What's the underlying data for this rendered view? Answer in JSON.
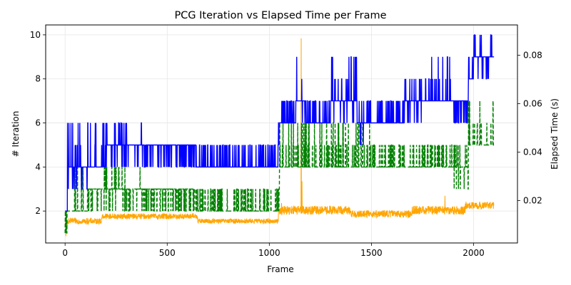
{
  "chart_data": {
    "type": "line",
    "title": "PCG Iteration vs Elapsed Time per Frame",
    "xlabel": "Frame",
    "ylabel": "# Iteration",
    "y2label": "Elapsed Time (s)",
    "xlim": [
      -95,
      2215
    ],
    "ylim": [
      0.55,
      10.45
    ],
    "y2lim": [
      0.0025,
      0.0925
    ],
    "xticks": [
      0,
      500,
      1000,
      1500,
      2000
    ],
    "yticks": [
      2,
      4,
      6,
      8,
      10
    ],
    "y2ticks": [
      0.02,
      0.04,
      0.06,
      0.08
    ],
    "y2tick_labels": [
      "0.02",
      "0.04",
      "0.06",
      "0.08"
    ],
    "grid": true,
    "frames": 2100,
    "series": [
      {
        "axis": "left",
        "style": "solid",
        "color": "#0000ff",
        "segments": [
          {
            "start": 0,
            "end": 12,
            "base": 2,
            "alts": [
              3,
              4
            ]
          },
          {
            "start": 12,
            "end": 80,
            "base": 4,
            "alts": [
              5,
              6,
              3
            ]
          },
          {
            "start": 80,
            "end": 110,
            "base": 4,
            "alts": [
              3
            ]
          },
          {
            "start": 110,
            "end": 200,
            "base": 4,
            "alts": [
              5,
              6
            ]
          },
          {
            "start": 200,
            "end": 380,
            "base": 5,
            "alts": [
              6,
              4
            ]
          },
          {
            "start": 380,
            "end": 640,
            "base": 5,
            "alts": [
              4
            ]
          },
          {
            "start": 640,
            "end": 1045,
            "base": 4,
            "alts": [
              5
            ]
          },
          {
            "start": 1045,
            "end": 1060,
            "base": 6,
            "alts": [
              7,
              5
            ]
          },
          {
            "start": 1060,
            "end": 1130,
            "base": 6,
            "alts": [
              7
            ]
          },
          {
            "start": 1130,
            "end": 1180,
            "base": 7,
            "alts": [
              9,
              8,
              6
            ]
          },
          {
            "start": 1180,
            "end": 1300,
            "base": 6,
            "alts": [
              7
            ]
          },
          {
            "start": 1300,
            "end": 1430,
            "base": 7,
            "alts": [
              8,
              9,
              6
            ]
          },
          {
            "start": 1430,
            "end": 1480,
            "base": 6,
            "alts": [
              7,
              5
            ]
          },
          {
            "start": 1480,
            "end": 1660,
            "base": 6,
            "alts": [
              7
            ]
          },
          {
            "start": 1660,
            "end": 1760,
            "base": 7,
            "alts": [
              6,
              8
            ]
          },
          {
            "start": 1760,
            "end": 1900,
            "base": 7,
            "alts": [
              8,
              9
            ]
          },
          {
            "start": 1900,
            "end": 1975,
            "base": 7,
            "alts": [
              6
            ]
          },
          {
            "start": 1975,
            "end": 2000,
            "base": 8,
            "alts": [
              9
            ]
          },
          {
            "start": 2000,
            "end": 2100,
            "base": 9,
            "alts": [
              8,
              10
            ]
          }
        ]
      },
      {
        "axis": "left",
        "style": "dashed",
        "color": "#008000",
        "segments": [
          {
            "start": 0,
            "end": 10,
            "base": 1,
            "alts": [
              2
            ]
          },
          {
            "start": 10,
            "end": 110,
            "base": 2,
            "alts": [
              3,
              4
            ]
          },
          {
            "start": 110,
            "end": 180,
            "base": 3,
            "alts": [
              2
            ]
          },
          {
            "start": 180,
            "end": 380,
            "base": 3,
            "alts": [
              4,
              2
            ]
          },
          {
            "start": 380,
            "end": 640,
            "base": 3,
            "alts": [
              2
            ]
          },
          {
            "start": 640,
            "end": 1050,
            "base": 2,
            "alts": [
              3
            ]
          },
          {
            "start": 1050,
            "end": 1500,
            "base": 4,
            "alts": [
              5,
              6
            ]
          },
          {
            "start": 1500,
            "end": 1900,
            "base": 4,
            "alts": [
              5
            ]
          },
          {
            "start": 1900,
            "end": 1975,
            "base": 4,
            "alts": [
              3,
              5
            ]
          },
          {
            "start": 1975,
            "end": 2100,
            "base": 5,
            "alts": [
              6,
              7
            ]
          }
        ]
      },
      {
        "axis": "right",
        "style": "solid",
        "color": "#ffa500",
        "segments": [
          {
            "start": 0,
            "end": 12,
            "base": 0.0085,
            "amp": 0.004
          },
          {
            "start": 12,
            "end": 180,
            "base": 0.0115,
            "amp": 0.0012
          },
          {
            "start": 180,
            "end": 650,
            "base": 0.0135,
            "amp": 0.0012
          },
          {
            "start": 650,
            "end": 1045,
            "base": 0.0115,
            "amp": 0.001
          },
          {
            "start": 1045,
            "end": 1400,
            "base": 0.016,
            "amp": 0.0018
          },
          {
            "start": 1400,
            "end": 1700,
            "base": 0.0145,
            "amp": 0.0015
          },
          {
            "start": 1700,
            "end": 1960,
            "base": 0.016,
            "amp": 0.0018
          },
          {
            "start": 1960,
            "end": 2100,
            "base": 0.018,
            "amp": 0.0015
          }
        ],
        "spikes": [
          [
            1060,
            0.019
          ],
          [
            1156,
            0.087
          ],
          [
            1160,
            0.028
          ],
          [
            1860,
            0.022
          ],
          [
            1985,
            0.018
          ]
        ]
      }
    ]
  }
}
